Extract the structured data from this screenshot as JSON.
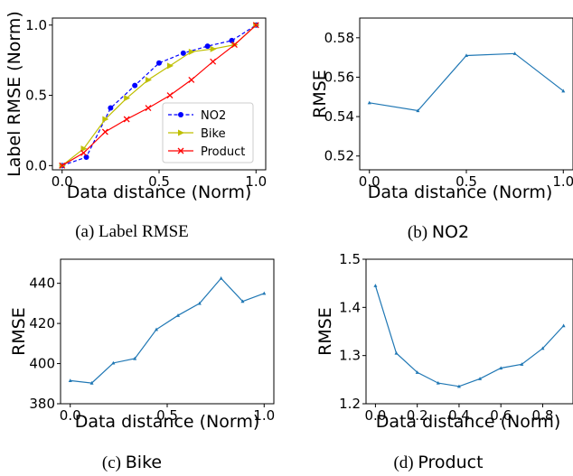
{
  "chart_data": [
    {
      "id": "a",
      "type": "line",
      "caption_prefix": "(a)",
      "caption_name": "Label RMSE",
      "caption_font": "serif",
      "xlabel": "Data distance (Norm)",
      "ylabel": "Label RMSE (Norm)",
      "xlim": [
        -0.05,
        1.05
      ],
      "ylim": [
        -0.03,
        1.05
      ],
      "xticks": [
        0.0,
        0.5,
        1.0
      ],
      "xtick_labels": [
        "0.0",
        "0.5",
        "1.0"
      ],
      "yticks": [
        0.0,
        0.5,
        1.0
      ],
      "ytick_labels": [
        "0.0",
        "0.5",
        "1.0"
      ],
      "legend": "lower-right",
      "series": [
        {
          "name": "NO2",
          "color": "#0000ff",
          "style": "dashed",
          "marker": "circle",
          "x": [
            0.0,
            0.125,
            0.25,
            0.375,
            0.5,
            0.625,
            0.75,
            0.875,
            1.0
          ],
          "y": [
            0.0,
            0.06,
            0.41,
            0.57,
            0.73,
            0.8,
            0.85,
            0.89,
            1.0
          ]
        },
        {
          "name": "Bike",
          "color": "#bfbf00",
          "style": "solid",
          "marker": "triangle-right",
          "x": [
            0.0,
            0.111,
            0.222,
            0.333,
            0.444,
            0.556,
            0.667,
            0.778,
            0.889,
            1.0
          ],
          "y": [
            0.0,
            0.12,
            0.33,
            0.48,
            0.61,
            0.71,
            0.81,
            0.83,
            0.86,
            1.0
          ]
        },
        {
          "name": "Product",
          "color": "#ff0000",
          "style": "solid",
          "marker": "x",
          "x": [
            0.0,
            0.111,
            0.222,
            0.333,
            0.444,
            0.556,
            0.667,
            0.778,
            0.889,
            1.0
          ],
          "y": [
            0.0,
            0.09,
            0.24,
            0.33,
            0.41,
            0.5,
            0.61,
            0.74,
            0.86,
            1.0
          ]
        }
      ]
    },
    {
      "id": "b",
      "type": "line",
      "caption_prefix": "(b)",
      "caption_name": "NO2",
      "caption_font": "sans",
      "xlabel": "Data distance (Norm)",
      "ylabel": "RMSE",
      "xlim": [
        -0.05,
        1.05
      ],
      "ylim": [
        0.513,
        0.59
      ],
      "xticks": [
        0.0,
        0.5,
        1.0
      ],
      "xtick_labels": [
        "0.0",
        "0.5",
        "1.0"
      ],
      "yticks": [
        0.52,
        0.54,
        0.56,
        0.58
      ],
      "ytick_labels": [
        "0.52",
        "0.54",
        "0.56",
        "0.58"
      ],
      "series": [
        {
          "color": "#1f77b4",
          "style": "solid",
          "marker": "small-triangle",
          "x": [
            0.0,
            0.25,
            0.5,
            0.75,
            1.0
          ],
          "y": [
            0.547,
            0.543,
            0.571,
            0.572,
            0.553
          ]
        }
      ]
    },
    {
      "id": "c",
      "type": "line",
      "caption_prefix": "(c)",
      "caption_name": "Bike",
      "caption_font": "sans",
      "xlabel": "Data distance (Norm)",
      "ylabel": "RMSE",
      "xlim": [
        -0.05,
        1.05
      ],
      "ylim": [
        380,
        452
      ],
      "xticks": [
        0.0,
        0.5,
        1.0
      ],
      "xtick_labels": [
        "0.0",
        "0.5",
        "1.0"
      ],
      "yticks": [
        380,
        400,
        420,
        440
      ],
      "ytick_labels": [
        "380",
        "400",
        "420",
        "440"
      ],
      "series": [
        {
          "color": "#1f77b4",
          "style": "solid",
          "marker": "small-triangle",
          "x": [
            0.0,
            0.111,
            0.222,
            0.333,
            0.444,
            0.556,
            0.667,
            0.778,
            0.889,
            1.0
          ],
          "y": [
            391.5,
            390.3,
            400.3,
            402.5,
            417.0,
            424.0,
            430.0,
            442.5,
            431.0,
            435.0
          ]
        }
      ]
    },
    {
      "id": "d",
      "type": "line",
      "caption_prefix": "(d)",
      "caption_name": "Product",
      "caption_font": "sans",
      "xlabel": "Data distance (Norm)",
      "ylabel": "RMSE",
      "xlim": [
        -0.045,
        0.945
      ],
      "ylim": [
        1.2,
        1.5
      ],
      "xticks": [
        0.0,
        0.2,
        0.4,
        0.6,
        0.8
      ],
      "xtick_labels": [
        "0.0",
        "0.2",
        "0.4",
        "0.6",
        "0.8"
      ],
      "yticks": [
        1.2,
        1.3,
        1.4,
        1.5
      ],
      "ytick_labels": [
        "1.2",
        "1.3",
        "1.4",
        "1.5"
      ],
      "series": [
        {
          "color": "#1f77b4",
          "style": "solid",
          "marker": "small-triangle",
          "x": [
            0.0,
            0.1,
            0.2,
            0.3,
            0.4,
            0.5,
            0.6,
            0.7,
            0.8,
            0.9
          ],
          "y": [
            1.445,
            1.305,
            1.265,
            1.243,
            1.236,
            1.252,
            1.274,
            1.282,
            1.315,
            1.362
          ]
        }
      ]
    }
  ]
}
